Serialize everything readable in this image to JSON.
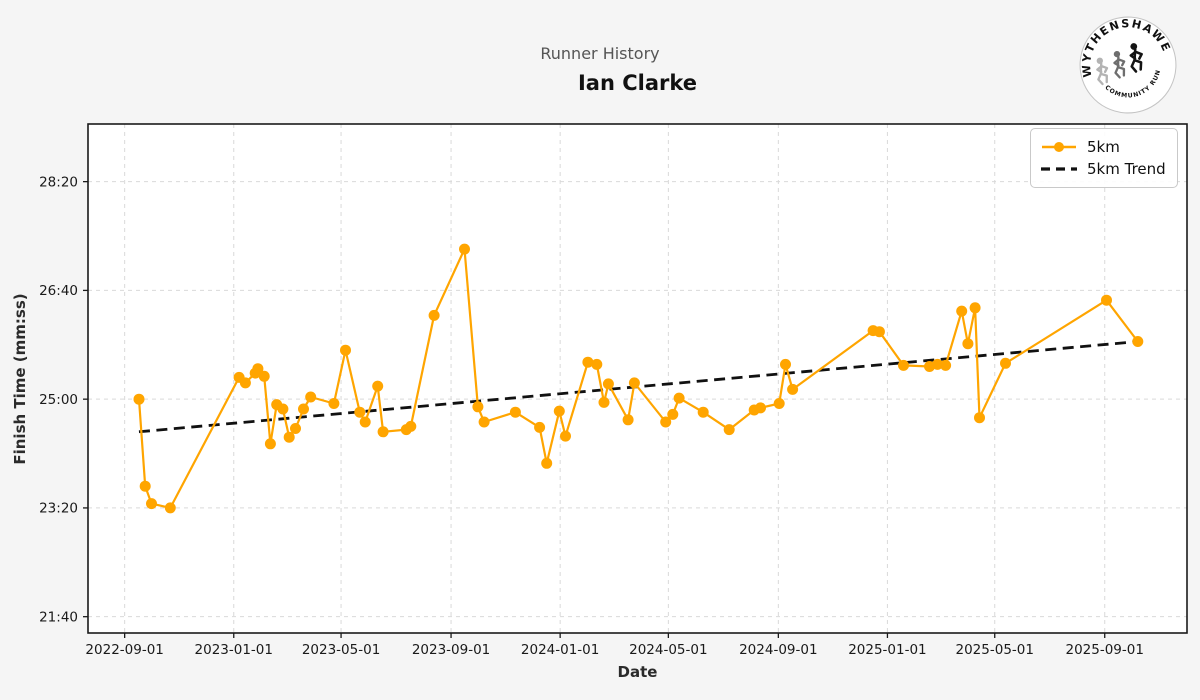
{
  "header": {
    "subtitle": "Runner History",
    "runner_name": "Ian Clarke"
  },
  "logo": {
    "top_text": "WYTHENSHAWE",
    "bottom_text": "COMMUNITY RUN"
  },
  "legend": [
    {
      "label": "5km",
      "color": "#FFA500"
    },
    {
      "label": "5km Trend",
      "color": "#111111"
    }
  ],
  "chart_data": {
    "type": "line",
    "title": "Runner History",
    "subtitle_runner": "Ian Clarke",
    "xlabel": "Date",
    "ylabel": "Finish Time (mm:ss)",
    "grid": true,
    "legend_position": "upper right",
    "style": {
      "figure_bg": "#f5f5f5",
      "plot_bg": "#ffffff",
      "grid_color": "#d9d9d9",
      "spine_color": "#1a1a1a",
      "tick_label_color": "#1a1a1a",
      "series_color": "#FFA500",
      "trend_color": "#111111"
    },
    "x_axis": {
      "range": [
        "2022-07-22",
        "2025-12-02"
      ],
      "ticks": [
        "2022-09-01",
        "2023-01-01",
        "2023-05-01",
        "2023-09-01",
        "2024-01-01",
        "2024-05-01",
        "2024-09-01",
        "2025-01-01",
        "2025-05-01",
        "2025-09-01"
      ]
    },
    "y_axis": {
      "range_seconds": [
        1285,
        1753
      ],
      "ticks": [
        "21:40",
        "23:20",
        "25:00",
        "26:40",
        "28:20"
      ]
    },
    "series": [
      {
        "name": "5km",
        "color": "#FFA500",
        "points": [
          {
            "date": "2022-09-17",
            "time": "25:00"
          },
          {
            "date": "2022-09-24",
            "time": "23:40"
          },
          {
            "date": "2022-10-01",
            "time": "23:24"
          },
          {
            "date": "2022-10-22",
            "time": "23:20"
          },
          {
            "date": "2023-01-07",
            "time": "25:20"
          },
          {
            "date": "2023-01-14",
            "time": "25:15"
          },
          {
            "date": "2023-01-25",
            "time": "25:24"
          },
          {
            "date": "2023-01-28",
            "time": "25:28"
          },
          {
            "date": "2023-02-04",
            "time": "25:21"
          },
          {
            "date": "2023-02-11",
            "time": "24:19"
          },
          {
            "date": "2023-02-18",
            "time": "24:55"
          },
          {
            "date": "2023-02-25",
            "time": "24:51"
          },
          {
            "date": "2023-03-04",
            "time": "24:25"
          },
          {
            "date": "2023-03-11",
            "time": "24:33"
          },
          {
            "date": "2023-03-20",
            "time": "24:51"
          },
          {
            "date": "2023-03-28",
            "time": "25:02"
          },
          {
            "date": "2023-04-23",
            "time": "24:56"
          },
          {
            "date": "2023-05-06",
            "time": "25:45"
          },
          {
            "date": "2023-05-22",
            "time": "24:48"
          },
          {
            "date": "2023-05-28",
            "time": "24:39"
          },
          {
            "date": "2023-06-11",
            "time": "25:12"
          },
          {
            "date": "2023-06-17",
            "time": "24:30"
          },
          {
            "date": "2023-07-13",
            "time": "24:32"
          },
          {
            "date": "2023-07-18",
            "time": "24:35"
          },
          {
            "date": "2023-08-13",
            "time": "26:17"
          },
          {
            "date": "2023-09-16",
            "time": "27:18"
          },
          {
            "date": "2023-10-01",
            "time": "24:53"
          },
          {
            "date": "2023-10-08",
            "time": "24:39"
          },
          {
            "date": "2023-11-12",
            "time": "24:48"
          },
          {
            "date": "2023-12-09",
            "time": "24:34"
          },
          {
            "date": "2023-12-17",
            "time": "24:01"
          },
          {
            "date": "2023-12-31",
            "time": "24:49"
          },
          {
            "date": "2024-01-07",
            "time": "24:26"
          },
          {
            "date": "2024-02-01",
            "time": "25:34"
          },
          {
            "date": "2024-02-11",
            "time": "25:32"
          },
          {
            "date": "2024-02-19",
            "time": "24:57"
          },
          {
            "date": "2024-02-24",
            "time": "25:14"
          },
          {
            "date": "2024-03-17",
            "time": "24:41"
          },
          {
            "date": "2024-03-24",
            "time": "25:15"
          },
          {
            "date": "2024-04-28",
            "time": "24:39"
          },
          {
            "date": "2024-05-06",
            "time": "24:46"
          },
          {
            "date": "2024-05-13",
            "time": "25:01"
          },
          {
            "date": "2024-06-09",
            "time": "24:48"
          },
          {
            "date": "2024-07-08",
            "time": "24:32"
          },
          {
            "date": "2024-08-05",
            "time": "24:50"
          },
          {
            "date": "2024-08-12",
            "time": "24:52"
          },
          {
            "date": "2024-09-02",
            "time": "24:56"
          },
          {
            "date": "2024-09-09",
            "time": "25:32"
          },
          {
            "date": "2024-09-17",
            "time": "25:09"
          },
          {
            "date": "2024-12-16",
            "time": "26:03"
          },
          {
            "date": "2024-12-23",
            "time": "26:02"
          },
          {
            "date": "2025-01-19",
            "time": "25:31"
          },
          {
            "date": "2025-02-17",
            "time": "25:30"
          },
          {
            "date": "2025-02-26",
            "time": "25:32"
          },
          {
            "date": "2025-03-07",
            "time": "25:31"
          },
          {
            "date": "2025-03-25",
            "time": "26:21"
          },
          {
            "date": "2025-04-01",
            "time": "25:51"
          },
          {
            "date": "2025-04-09",
            "time": "26:24"
          },
          {
            "date": "2025-04-14",
            "time": "24:43"
          },
          {
            "date": "2025-05-13",
            "time": "25:33"
          },
          {
            "date": "2025-09-03",
            "time": "26:31"
          },
          {
            "date": "2025-10-08",
            "time": "25:53"
          }
        ]
      }
    ],
    "trend": {
      "name": "5km Trend",
      "color": "#111111",
      "start": {
        "date": "2022-09-17",
        "time": "24:30"
      },
      "end": {
        "date": "2025-10-08",
        "time": "25:53"
      }
    }
  }
}
